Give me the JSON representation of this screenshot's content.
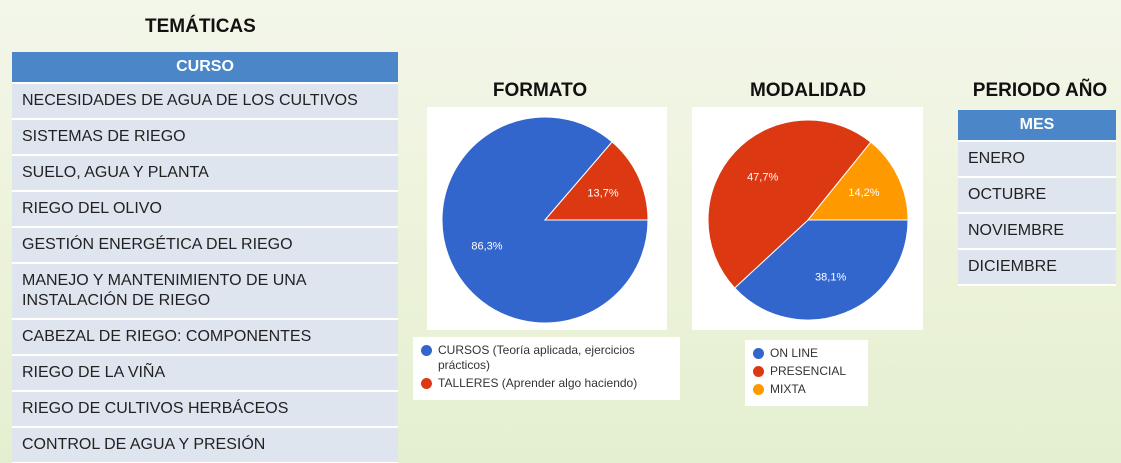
{
  "tematicas": {
    "title": "TEMÁTICAS",
    "header": "CURSO",
    "rows": [
      "NECESIDADES DE AGUA DE LOS CULTIVOS",
      "SISTEMAS DE RIEGO",
      "SUELO, AGUA Y PLANTA",
      "RIEGO DEL OLIVO",
      "GESTIÓN ENERGÉTICA DEL RIEGO",
      "MANEJO Y MANTENIMIENTO DE UNA INSTALACIÓN DE RIEGO",
      "CABEZAL DE RIEGO: COMPONENTES",
      "RIEGO DE LA VIÑA",
      "RIEGO DE CULTIVOS HERBÁCEOS",
      "CONTROL DE AGUA Y PRESIÓN"
    ]
  },
  "chart_data": [
    {
      "type": "pie",
      "title": "FORMATO",
      "categories": [
        "CURSOS (Teoría aplicada, ejercicios prácticos)",
        "TALLERES (Aprender algo haciendo)"
      ],
      "values": [
        86.3,
        13.7
      ],
      "value_labels": [
        "86,3%",
        "13,7%"
      ],
      "colors": [
        "#3366cc",
        "#dc3912"
      ]
    },
    {
      "type": "pie",
      "title": "MODALIDAD",
      "categories": [
        "ON LINE",
        "PRESENCIAL",
        "MIXTA"
      ],
      "values": [
        38.1,
        47.7,
        14.2
      ],
      "value_labels": [
        "38,1%",
        "47,7%",
        "14,2%"
      ],
      "colors": [
        "#3366cc",
        "#dc3912",
        "#ff9900"
      ]
    }
  ],
  "periodo": {
    "title": "PERIODO AÑO",
    "header": "MES",
    "rows": [
      "ENERO",
      "OCTUBRE",
      "NOVIEMBRE",
      "DICIEMBRE"
    ]
  }
}
